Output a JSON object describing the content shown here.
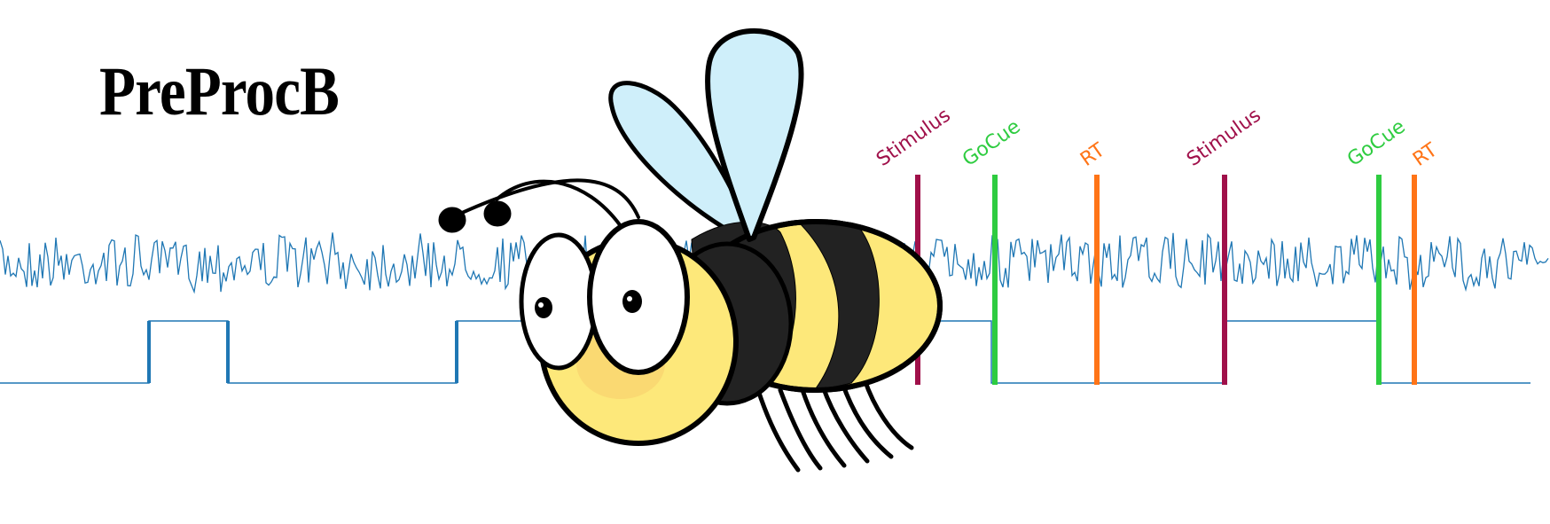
{
  "title": "PreProcB",
  "signal": {
    "color": "#1f77b4"
  },
  "events": [
    {
      "label": "Stimulus",
      "color": "#a0104a"
    },
    {
      "label": "GoCue",
      "color": "#2ecc40"
    },
    {
      "label": "RT",
      "color": "#ff7417"
    },
    {
      "label": "Stimulus",
      "color": "#a0104a"
    },
    {
      "label": "GoCue",
      "color": "#2ecc40"
    },
    {
      "label": "RT",
      "color": "#ff7417"
    }
  ],
  "mascot": {
    "icon": "bee-icon",
    "colors": {
      "body": "#fde87a",
      "stripe": "#222222",
      "wing": "#cfeffa"
    }
  }
}
